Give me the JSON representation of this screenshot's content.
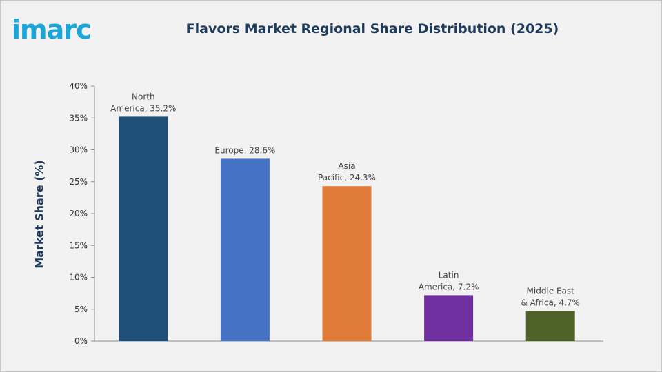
{
  "logo": {
    "text": "imarc"
  },
  "chart_data": {
    "type": "bar",
    "title": "Flavors Market Regional Share Distribution (2025)",
    "ylabel": "Market Share (%)",
    "xlabel": "",
    "ylim": [
      0,
      40
    ],
    "yticks": [
      "0%",
      "5%",
      "10%",
      "15%",
      "20%",
      "25%",
      "30%",
      "35%",
      "40%"
    ],
    "ytick_values": [
      0,
      5,
      10,
      15,
      20,
      25,
      30,
      35,
      40
    ],
    "grid": false,
    "categories": [
      "North America",
      "Europe",
      "Asia Pacific",
      "Latin America",
      "Middle East & Africa"
    ],
    "values": [
      35.2,
      28.6,
      24.3,
      7.2,
      4.7
    ],
    "data_labels": [
      [
        "North",
        "America, 35.2%"
      ],
      [
        "Europe, 28.6%"
      ],
      [
        "Asia",
        "Pacific, 24.3%"
      ],
      [
        "Latin",
        "America, 7.2%"
      ],
      [
        "Middle East",
        "& Africa, 4.7%"
      ]
    ],
    "colors": [
      "#1f4e79",
      "#4472c4",
      "#e07b39",
      "#7030a0",
      "#4f6228"
    ]
  }
}
